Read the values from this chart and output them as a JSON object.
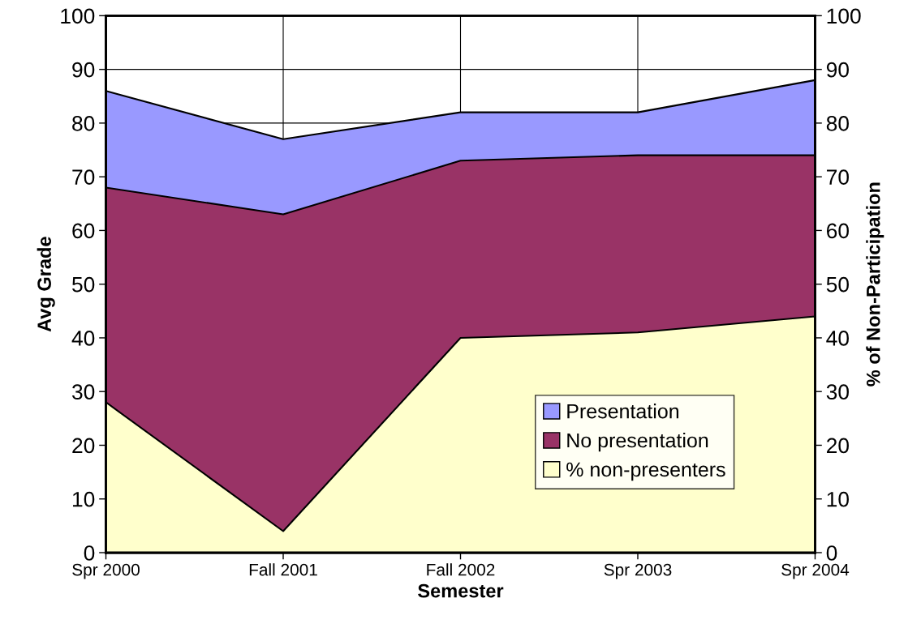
{
  "chart_data": {
    "type": "area",
    "xlabel": "Semester",
    "ylabel": "Avg Grade",
    "y2label": "% of Non-Participation",
    "categories": [
      "Spr 2000",
      "Fall 2001",
      "Fall 2002",
      "Spr 2003",
      "Spr 2004"
    ],
    "series": [
      {
        "name": "Presentation",
        "color": "#9999ff",
        "values": [
          86,
          77,
          82,
          82,
          88
        ]
      },
      {
        "name": "No presentation",
        "color": "#993366",
        "values": [
          68,
          63,
          73,
          74,
          74
        ]
      },
      {
        "name": "% non-presenters",
        "color": "#ffffcc",
        "values": [
          28,
          4,
          40,
          41,
          44
        ],
        "axis": "y2"
      }
    ],
    "ylim": [
      0,
      100
    ],
    "yticks": [
      0,
      10,
      20,
      30,
      40,
      50,
      60,
      70,
      80,
      90,
      100
    ],
    "y2lim": [
      0,
      100
    ],
    "y2ticks": [
      0,
      10,
      20,
      30,
      40,
      50,
      60,
      70,
      80,
      90,
      100
    ],
    "grid": true,
    "legend": "bottom right"
  }
}
